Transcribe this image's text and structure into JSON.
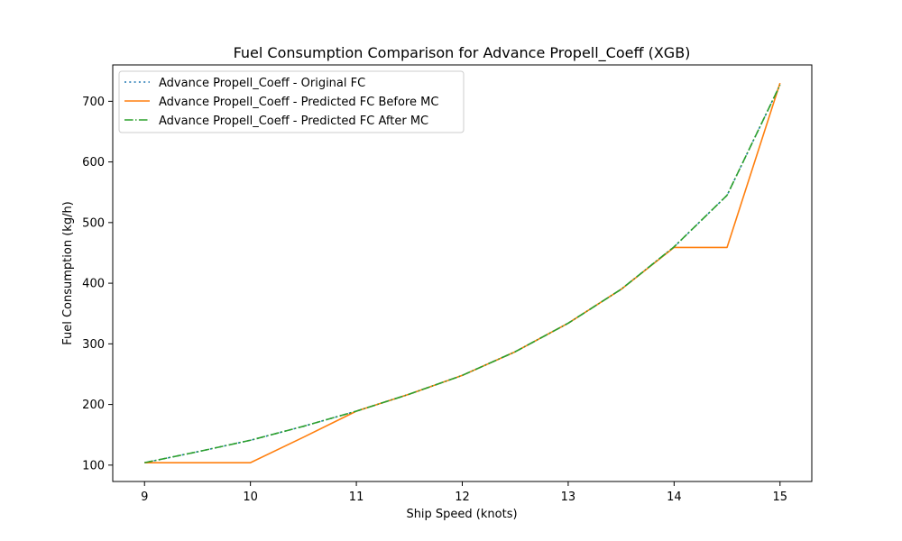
{
  "chart_data": {
    "type": "line",
    "title": "Fuel Consumption Comparison for Advance Propell_Coeff (XGB)",
    "xlabel": "Ship Speed (knots)",
    "ylabel": "Fuel Consumption (kg/h)",
    "xlim": [
      8.7,
      15.3
    ],
    "ylim": [
      73,
      760
    ],
    "xticks": [
      9,
      10,
      11,
      12,
      13,
      14,
      15
    ],
    "yticks": [
      100,
      200,
      300,
      400,
      500,
      600,
      700
    ],
    "grid": false,
    "legend_position": "top-left",
    "series": [
      {
        "name": "Advance Propell_Coeff - Original FC",
        "color": "#1f77b4",
        "style": "dotted",
        "x": [
          9,
          9.5,
          10,
          10.5,
          11,
          11.5,
          12,
          12.5,
          13,
          13.5,
          14,
          14.5,
          15
        ],
        "y": [
          104,
          122,
          141,
          164,
          189,
          217,
          248,
          287,
          334,
          390,
          460,
          545,
          727
        ]
      },
      {
        "name": "Advance Propell_Coeff - Predicted FC Before MC",
        "color": "#ff7f0e",
        "style": "solid",
        "x": [
          9,
          9.5,
          10,
          10.5,
          11,
          11.5,
          12,
          12.5,
          13,
          13.5,
          14,
          14.5,
          15
        ],
        "y": [
          104,
          104,
          104,
          146,
          189,
          217,
          248,
          287,
          334,
          390,
          459,
          459,
          730
        ]
      },
      {
        "name": "Advance Propell_Coeff - Predicted FC After MC",
        "color": "#2ca02c",
        "style": "dashdot",
        "x": [
          9,
          9.5,
          10,
          10.5,
          11,
          11.5,
          12,
          12.5,
          13,
          13.5,
          14,
          14.5,
          15
        ],
        "y": [
          104,
          122,
          141,
          164,
          189,
          217,
          248,
          287,
          334,
          390,
          460,
          545,
          727
        ]
      }
    ]
  }
}
